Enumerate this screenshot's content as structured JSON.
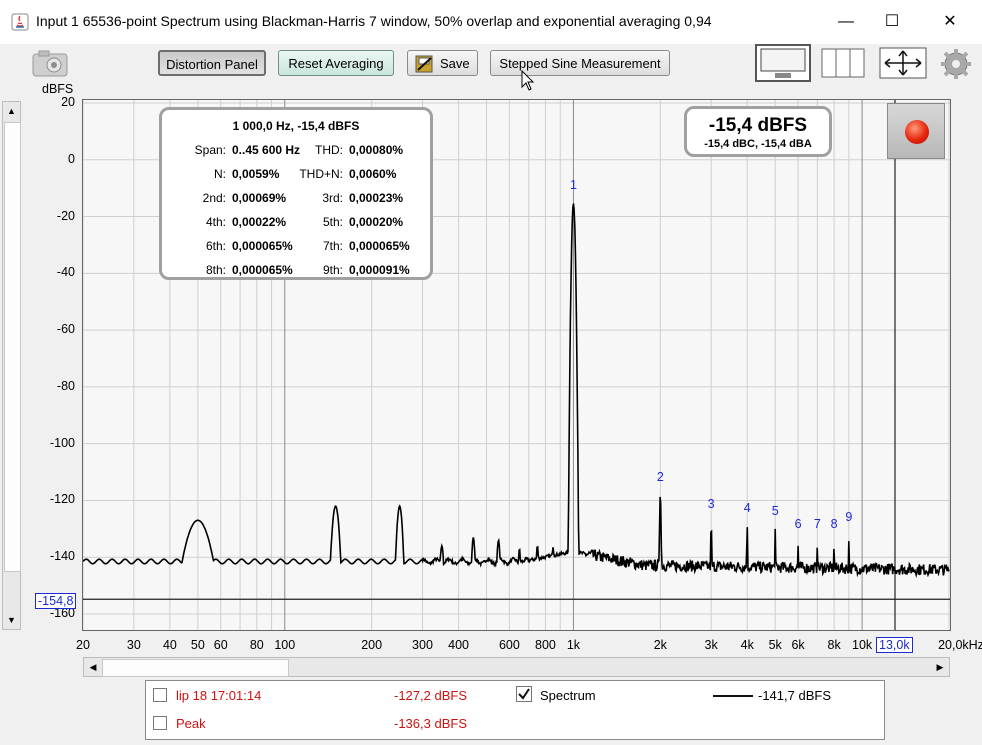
{
  "window": {
    "title": "Input 1 65536-point Spectrum using Blackman-Harris 7 window, 50% overlap and exponential averaging 0,94",
    "controls": {
      "minimize": "—",
      "maximize": "☐",
      "close": "✕"
    }
  },
  "toolbar": {
    "distortion_panel": "Distortion Panel",
    "reset_averaging": "Reset Averaging",
    "save": "Save",
    "stepped_sine": "Stepped Sine Measurement"
  },
  "plot": {
    "y_unit": "dBFS",
    "y_ticks": [
      "20",
      "0",
      "-20",
      "-40",
      "-60",
      "-80",
      "-100",
      "-120",
      "-140",
      "-160"
    ],
    "x_ticks": [
      "20",
      "30",
      "40",
      "50",
      "60",
      "80",
      "100",
      "200",
      "300",
      "400",
      "600",
      "800",
      "1k",
      "2k",
      "3k",
      "4k",
      "5k",
      "6k",
      "8k",
      "10k",
      "20,0kHz"
    ],
    "cursor_x": "13,0k",
    "ref_level": "-154,8",
    "harmonic_labels": [
      "1",
      "2",
      "3",
      "4",
      "5",
      "6",
      "7",
      "8",
      "9"
    ]
  },
  "distortion": {
    "header": "1 000,0 Hz, -15,4 dBFS",
    "rows": [
      [
        {
          "label": "Span:",
          "value": "0..45 600 Hz"
        },
        {
          "label": "THD:",
          "value": "0,00080%"
        }
      ],
      [
        {
          "label": "N:",
          "value": "0,0059%"
        },
        {
          "label": "THD+N:",
          "value": "0,0060%"
        }
      ],
      [
        {
          "label": "2nd:",
          "value": "0,00069%"
        },
        {
          "label": "3rd:",
          "value": "0,00023%"
        }
      ],
      [
        {
          "label": "4th:",
          "value": "0,00022%"
        },
        {
          "label": "5th:",
          "value": "0,00020%"
        }
      ],
      [
        {
          "label": "6th:",
          "value": "0,000065%"
        },
        {
          "label": "7th:",
          "value": "0,000065%"
        }
      ],
      [
        {
          "label": "8th:",
          "value": "0,000065%"
        },
        {
          "label": "9th:",
          "value": "0,000091%"
        }
      ]
    ]
  },
  "level": {
    "main": "-15,4 dBFS",
    "sub": "-15,4 dBC, -15,4 dBA"
  },
  "legend": {
    "rows": [
      {
        "name": "lip 18 17:01:14",
        "value": "-127,2 dBFS"
      },
      {
        "name": "Peak",
        "value": "-136,3 dBFS"
      }
    ],
    "spectrum_label": "Spectrum",
    "spectrum_value": "-141,7 dBFS"
  },
  "colors": {
    "marker_blue": "#1d2ad4",
    "legend_red": "#d01010",
    "record_red": "#e8240c"
  }
}
